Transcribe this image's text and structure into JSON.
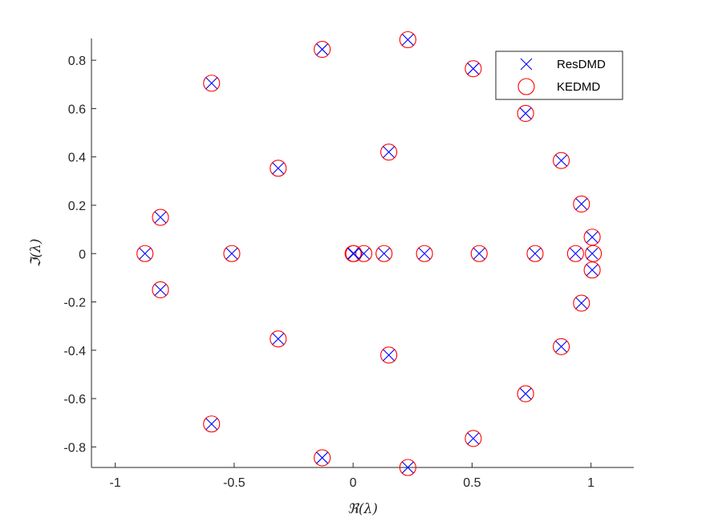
{
  "chart_data": {
    "type": "scatter",
    "xlabel": "ℜ(λ)",
    "ylabel": "ℑ(λ)",
    "xlim": [
      -1.1,
      1.18
    ],
    "ylim": [
      -0.885,
      0.89
    ],
    "xticks": [
      -1,
      -0.5,
      0,
      0.5,
      1
    ],
    "xtick_labels": [
      "-1",
      "-0.5",
      "0",
      "0.5",
      "1"
    ],
    "yticks": [
      -0.8,
      -0.6,
      -0.4,
      -0.2,
      0,
      0.2,
      0.4,
      0.6,
      0.8
    ],
    "ytick_labels": [
      "-0.8",
      "-0.6",
      "-0.4",
      "-0.2",
      "0",
      "0.2",
      "0.4",
      "0.6",
      "0.8"
    ],
    "grid": false,
    "legend_position": "top-right",
    "series": [
      {
        "name": "ResDMD",
        "marker": "x",
        "color": "#0000ff",
        "points": [
          [
            0.23,
            0.885
          ],
          [
            -0.13,
            0.845
          ],
          [
            0.505,
            0.765
          ],
          [
            -0.595,
            0.705
          ],
          [
            0.725,
            0.58
          ],
          [
            0.15,
            0.42
          ],
          [
            0.875,
            0.385
          ],
          [
            -0.315,
            0.353
          ],
          [
            0.96,
            0.205
          ],
          [
            -0.81,
            0.15
          ],
          [
            1.005,
            0.068
          ],
          [
            -0.875,
            0.0
          ],
          [
            -0.51,
            0.0
          ],
          [
            0.0,
            0.0
          ],
          [
            0.003,
            0.0
          ],
          [
            0.045,
            0.0
          ],
          [
            0.13,
            0.0
          ],
          [
            0.3,
            0.0
          ],
          [
            0.53,
            0.0
          ],
          [
            0.765,
            0.0
          ],
          [
            0.935,
            0.0
          ],
          [
            1.005,
            0.0
          ],
          [
            1.005,
            -0.068
          ],
          [
            -0.81,
            -0.15
          ],
          [
            0.96,
            -0.205
          ],
          [
            -0.315,
            -0.353
          ],
          [
            0.875,
            -0.385
          ],
          [
            0.15,
            -0.42
          ],
          [
            0.725,
            -0.58
          ],
          [
            -0.595,
            -0.705
          ],
          [
            0.505,
            -0.765
          ],
          [
            -0.13,
            -0.845
          ],
          [
            0.23,
            -0.885
          ]
        ]
      },
      {
        "name": "KEDMD",
        "marker": "o",
        "color": "#ff0000",
        "points": [
          [
            0.23,
            0.885
          ],
          [
            -0.13,
            0.845
          ],
          [
            0.505,
            0.765
          ],
          [
            -0.595,
            0.705
          ],
          [
            0.725,
            0.58
          ],
          [
            0.15,
            0.42
          ],
          [
            0.875,
            0.385
          ],
          [
            -0.315,
            0.353
          ],
          [
            0.96,
            0.205
          ],
          [
            -0.81,
            0.15
          ],
          [
            1.005,
            0.068
          ],
          [
            -0.875,
            0.0
          ],
          [
            -0.51,
            0.0
          ],
          [
            0.0,
            0.0
          ],
          [
            0.003,
            0.0
          ],
          [
            0.045,
            0.0
          ],
          [
            0.13,
            0.0
          ],
          [
            0.3,
            0.0
          ],
          [
            0.53,
            0.0
          ],
          [
            0.765,
            0.0
          ],
          [
            0.935,
            0.0
          ],
          [
            1.01,
            0.0
          ],
          [
            1.005,
            -0.068
          ],
          [
            -0.81,
            -0.15
          ],
          [
            0.96,
            -0.205
          ],
          [
            -0.315,
            -0.353
          ],
          [
            0.875,
            -0.385
          ],
          [
            0.15,
            -0.42
          ],
          [
            0.725,
            -0.58
          ],
          [
            -0.595,
            -0.705
          ],
          [
            0.505,
            -0.765
          ],
          [
            -0.13,
            -0.845
          ],
          [
            0.23,
            -0.885
          ]
        ]
      }
    ]
  }
}
